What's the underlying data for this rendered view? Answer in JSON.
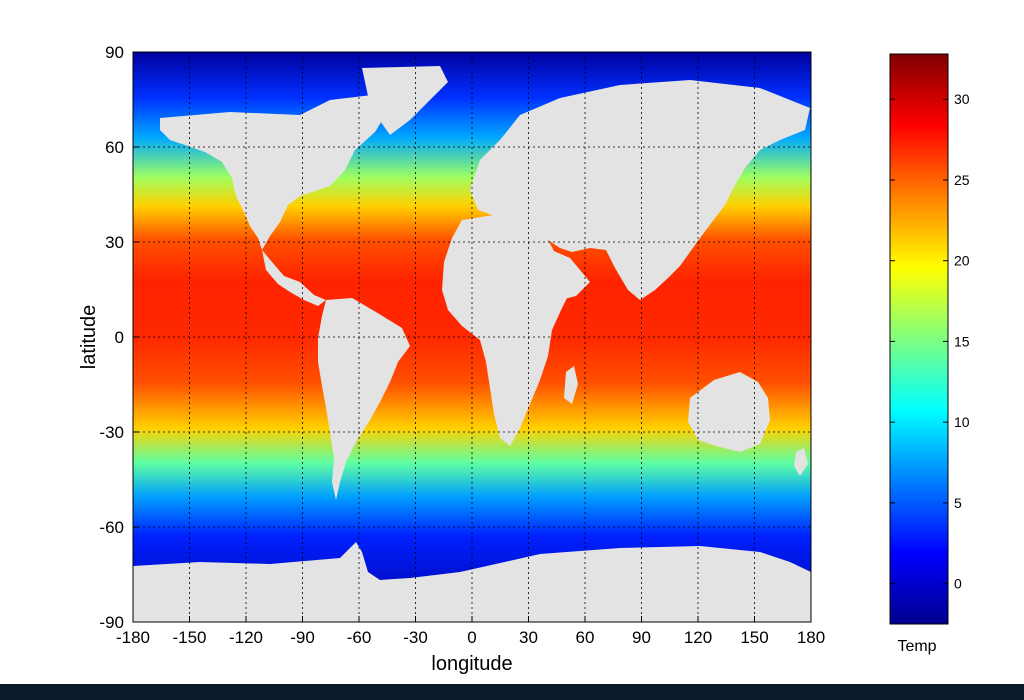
{
  "chart_data": {
    "type": "heatmap",
    "title": "",
    "xlabel": "longitude",
    "ylabel": "latitude",
    "xlim": [
      -180,
      180
    ],
    "ylim": [
      -90,
      90
    ],
    "x_ticks": [
      -180,
      -150,
      -120,
      -90,
      -60,
      -30,
      0,
      30,
      60,
      90,
      120,
      150,
      180
    ],
    "y_ticks": [
      90,
      60,
      30,
      0,
      -30,
      -60,
      -90
    ],
    "grid": true,
    "colorbar": {
      "label": "Temp",
      "range": [
        -2.5,
        32.8
      ],
      "ticks": [
        0,
        5,
        10,
        15,
        20,
        25,
        30
      ],
      "colormap": "jet"
    },
    "land_color": "#e3e3e3",
    "temperature_by_latitude": [
      {
        "lat": 85,
        "temp": -1.5
      },
      {
        "lat": 75,
        "temp": -1.0
      },
      {
        "lat": 65,
        "temp": 2
      },
      {
        "lat": 55,
        "temp": 8
      },
      {
        "lat": 45,
        "temp": 14
      },
      {
        "lat": 35,
        "temp": 21
      },
      {
        "lat": 25,
        "temp": 26
      },
      {
        "lat": 15,
        "temp": 28
      },
      {
        "lat": 5,
        "temp": 28.5
      },
      {
        "lat": -5,
        "temp": 27.5
      },
      {
        "lat": -15,
        "temp": 26
      },
      {
        "lat": -25,
        "temp": 22
      },
      {
        "lat": -35,
        "temp": 16
      },
      {
        "lat": -45,
        "temp": 9
      },
      {
        "lat": -55,
        "temp": 3
      },
      {
        "lat": -65,
        "temp": -1
      },
      {
        "lat": -75,
        "temp": -1.8
      },
      {
        "lat": -85,
        "temp": -1.8
      }
    ]
  }
}
